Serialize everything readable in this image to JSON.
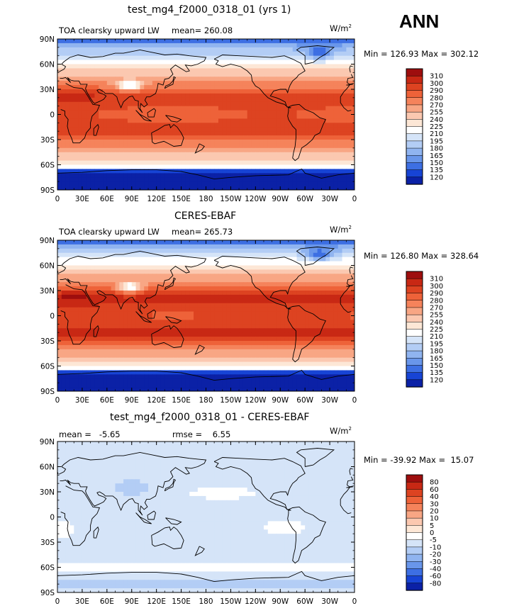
{
  "season": "ANN",
  "unit_base": "W/m",
  "unit_exp": "2",
  "panels": [
    {
      "title": "test_mg4_f2000_0318_01 (yrs 1)",
      "left_label": "TOA clearsky upward LW",
      "mean_text": "mean= 260.08",
      "rmse_text": "",
      "minmax": "Min = 126.93 Max = 302.12",
      "colorbar": "abs"
    },
    {
      "title": "CERES-EBAF",
      "left_label": "TOA clearsky upward LW",
      "mean_text": "mean= 265.73",
      "rmse_text": "",
      "minmax": "Min = 126.80 Max = 328.64",
      "colorbar": "abs"
    },
    {
      "title": "test_mg4_f2000_0318_01 - CERES-EBAF",
      "left_label": "mean =   -5.65",
      "mean_text": "",
      "rmse_text": "rmse =    6.55",
      "minmax": "Min = -39.92 Max =  15.07",
      "colorbar": "diff"
    }
  ],
  "axes": {
    "lat_labels": [
      "90N",
      "60N",
      "30N",
      "0",
      "30S",
      "60S",
      "90S"
    ],
    "lon_labels": [
      "0",
      "30E",
      "60E",
      "90E",
      "120E",
      "150E",
      "180",
      "150W",
      "120W",
      "90W",
      "60W",
      "30W",
      "0"
    ]
  },
  "colorbars": {
    "abs": {
      "labels": [
        "310",
        "300",
        "290",
        "280",
        "270",
        "255",
        "240",
        "225",
        "210",
        "195",
        "180",
        "165",
        "150",
        "135",
        "120"
      ],
      "colors": [
        "#9e0e0e",
        "#c82814",
        "#dd4321",
        "#ee6239",
        "#f5835b",
        "#f8a684",
        "#fbc8b0",
        "#fde7d6",
        "#ffffff",
        "#d5e4f8",
        "#b3cdf5",
        "#90b4f0",
        "#6996ea",
        "#3d6fe3",
        "#1744d5",
        "#0b21a6"
      ]
    },
    "diff": {
      "labels": [
        "80",
        "60",
        "40",
        "30",
        "20",
        "10",
        "5",
        "0",
        "-5",
        "-10",
        "-20",
        "-30",
        "-40",
        "-60",
        "-80"
      ],
      "colors": [
        "#9e0e0e",
        "#c82814",
        "#dd4321",
        "#ee6239",
        "#f5835b",
        "#f8a684",
        "#fbc8b0",
        "#fde7d6",
        "#ffffff",
        "#d5e4f8",
        "#b3cdf5",
        "#90b4f0",
        "#6996ea",
        "#3d6fe3",
        "#1744d5",
        "#0b21a6"
      ]
    }
  },
  "chart_data": [
    {
      "type": "heatmap",
      "title": "test_mg4_f2000_0318_01 (yrs 1)",
      "variable": "TOA clearsky upward LW",
      "units": "W/m2",
      "mean": 260.08,
      "min": 126.93,
      "max": 302.12,
      "x_range": [
        "0",
        "0"
      ],
      "y_range": [
        "90S",
        "90N"
      ],
      "levels": [
        120,
        135,
        150,
        165,
        180,
        195,
        210,
        225,
        240,
        255,
        270,
        280,
        290,
        300,
        310
      ]
    },
    {
      "type": "heatmap",
      "title": "CERES-EBAF",
      "variable": "TOA clearsky upward LW",
      "units": "W/m2",
      "mean": 265.73,
      "min": 126.8,
      "max": 328.64,
      "x_range": [
        "0",
        "0"
      ],
      "y_range": [
        "90S",
        "90N"
      ],
      "levels": [
        120,
        135,
        150,
        165,
        180,
        195,
        210,
        225,
        240,
        255,
        270,
        280,
        290,
        300,
        310
      ]
    },
    {
      "type": "heatmap",
      "title": "test_mg4_f2000_0318_01 - CERES-EBAF",
      "units": "W/m2",
      "mean": -5.65,
      "rmse": 6.55,
      "min": -39.92,
      "max": 15.07,
      "x_range": [
        "0",
        "0"
      ],
      "y_range": [
        "90S",
        "90N"
      ],
      "levels": [
        -80,
        -60,
        -40,
        -30,
        -20,
        -10,
        -5,
        0,
        5,
        10,
        20,
        30,
        40,
        60,
        80
      ]
    }
  ]
}
